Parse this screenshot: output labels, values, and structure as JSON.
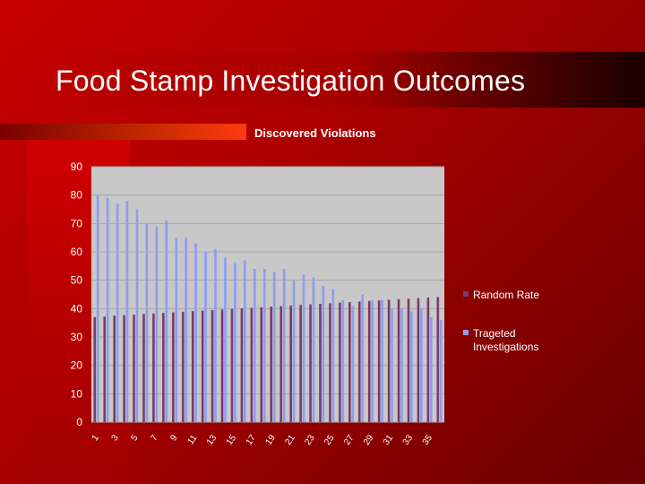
{
  "slide": {
    "title": "Food Stamp Investigation Outcomes"
  },
  "colors": {
    "random": "#7a3b6a",
    "targeted": "#8f9cf0",
    "plot_bg": "#c8c8c8",
    "grid": "#a9a9a9"
  },
  "chart_data": {
    "type": "bar",
    "title": "Discovered Violations",
    "xlabel": "",
    "ylabel": "",
    "ylim": [
      0,
      90
    ],
    "yticks": [
      0,
      10,
      20,
      30,
      40,
      50,
      60,
      70,
      80,
      90
    ],
    "categories": [
      1,
      2,
      3,
      4,
      5,
      6,
      7,
      8,
      9,
      10,
      11,
      12,
      13,
      14,
      15,
      16,
      17,
      18,
      19,
      20,
      21,
      22,
      23,
      24,
      25,
      26,
      27,
      28,
      29,
      30,
      31,
      32,
      33,
      34,
      35,
      36
    ],
    "xtick_labels": [
      "1",
      "3",
      "5",
      "7",
      "9",
      "11",
      "13",
      "15",
      "17",
      "19",
      "21",
      "23",
      "25",
      "27",
      "29",
      "31",
      "33",
      "35"
    ],
    "legend_position": "right",
    "grid": true,
    "series": [
      {
        "name": "Random Rate",
        "values": [
          37,
          37.2,
          37.5,
          37.7,
          37.9,
          38.1,
          38.3,
          38.5,
          38.7,
          38.9,
          39.1,
          39.3,
          39.5,
          39.7,
          39.9,
          40.1,
          40.3,
          40.5,
          40.7,
          40.9,
          41.1,
          41.3,
          41.5,
          41.7,
          41.9,
          42.1,
          42.3,
          42.5,
          42.7,
          42.9,
          43.1,
          43.3,
          43.5,
          43.7,
          43.9,
          44.1
        ]
      },
      {
        "name": "Trageted Investigations",
        "values": [
          80,
          79,
          77,
          78,
          75,
          70,
          69,
          71,
          65,
          65,
          63,
          60,
          61,
          58,
          56,
          57,
          54,
          54,
          53,
          54,
          50,
          52,
          51,
          48,
          47,
          43,
          41,
          45,
          43,
          43,
          40,
          40,
          39,
          40,
          37,
          36
        ]
      }
    ]
  }
}
